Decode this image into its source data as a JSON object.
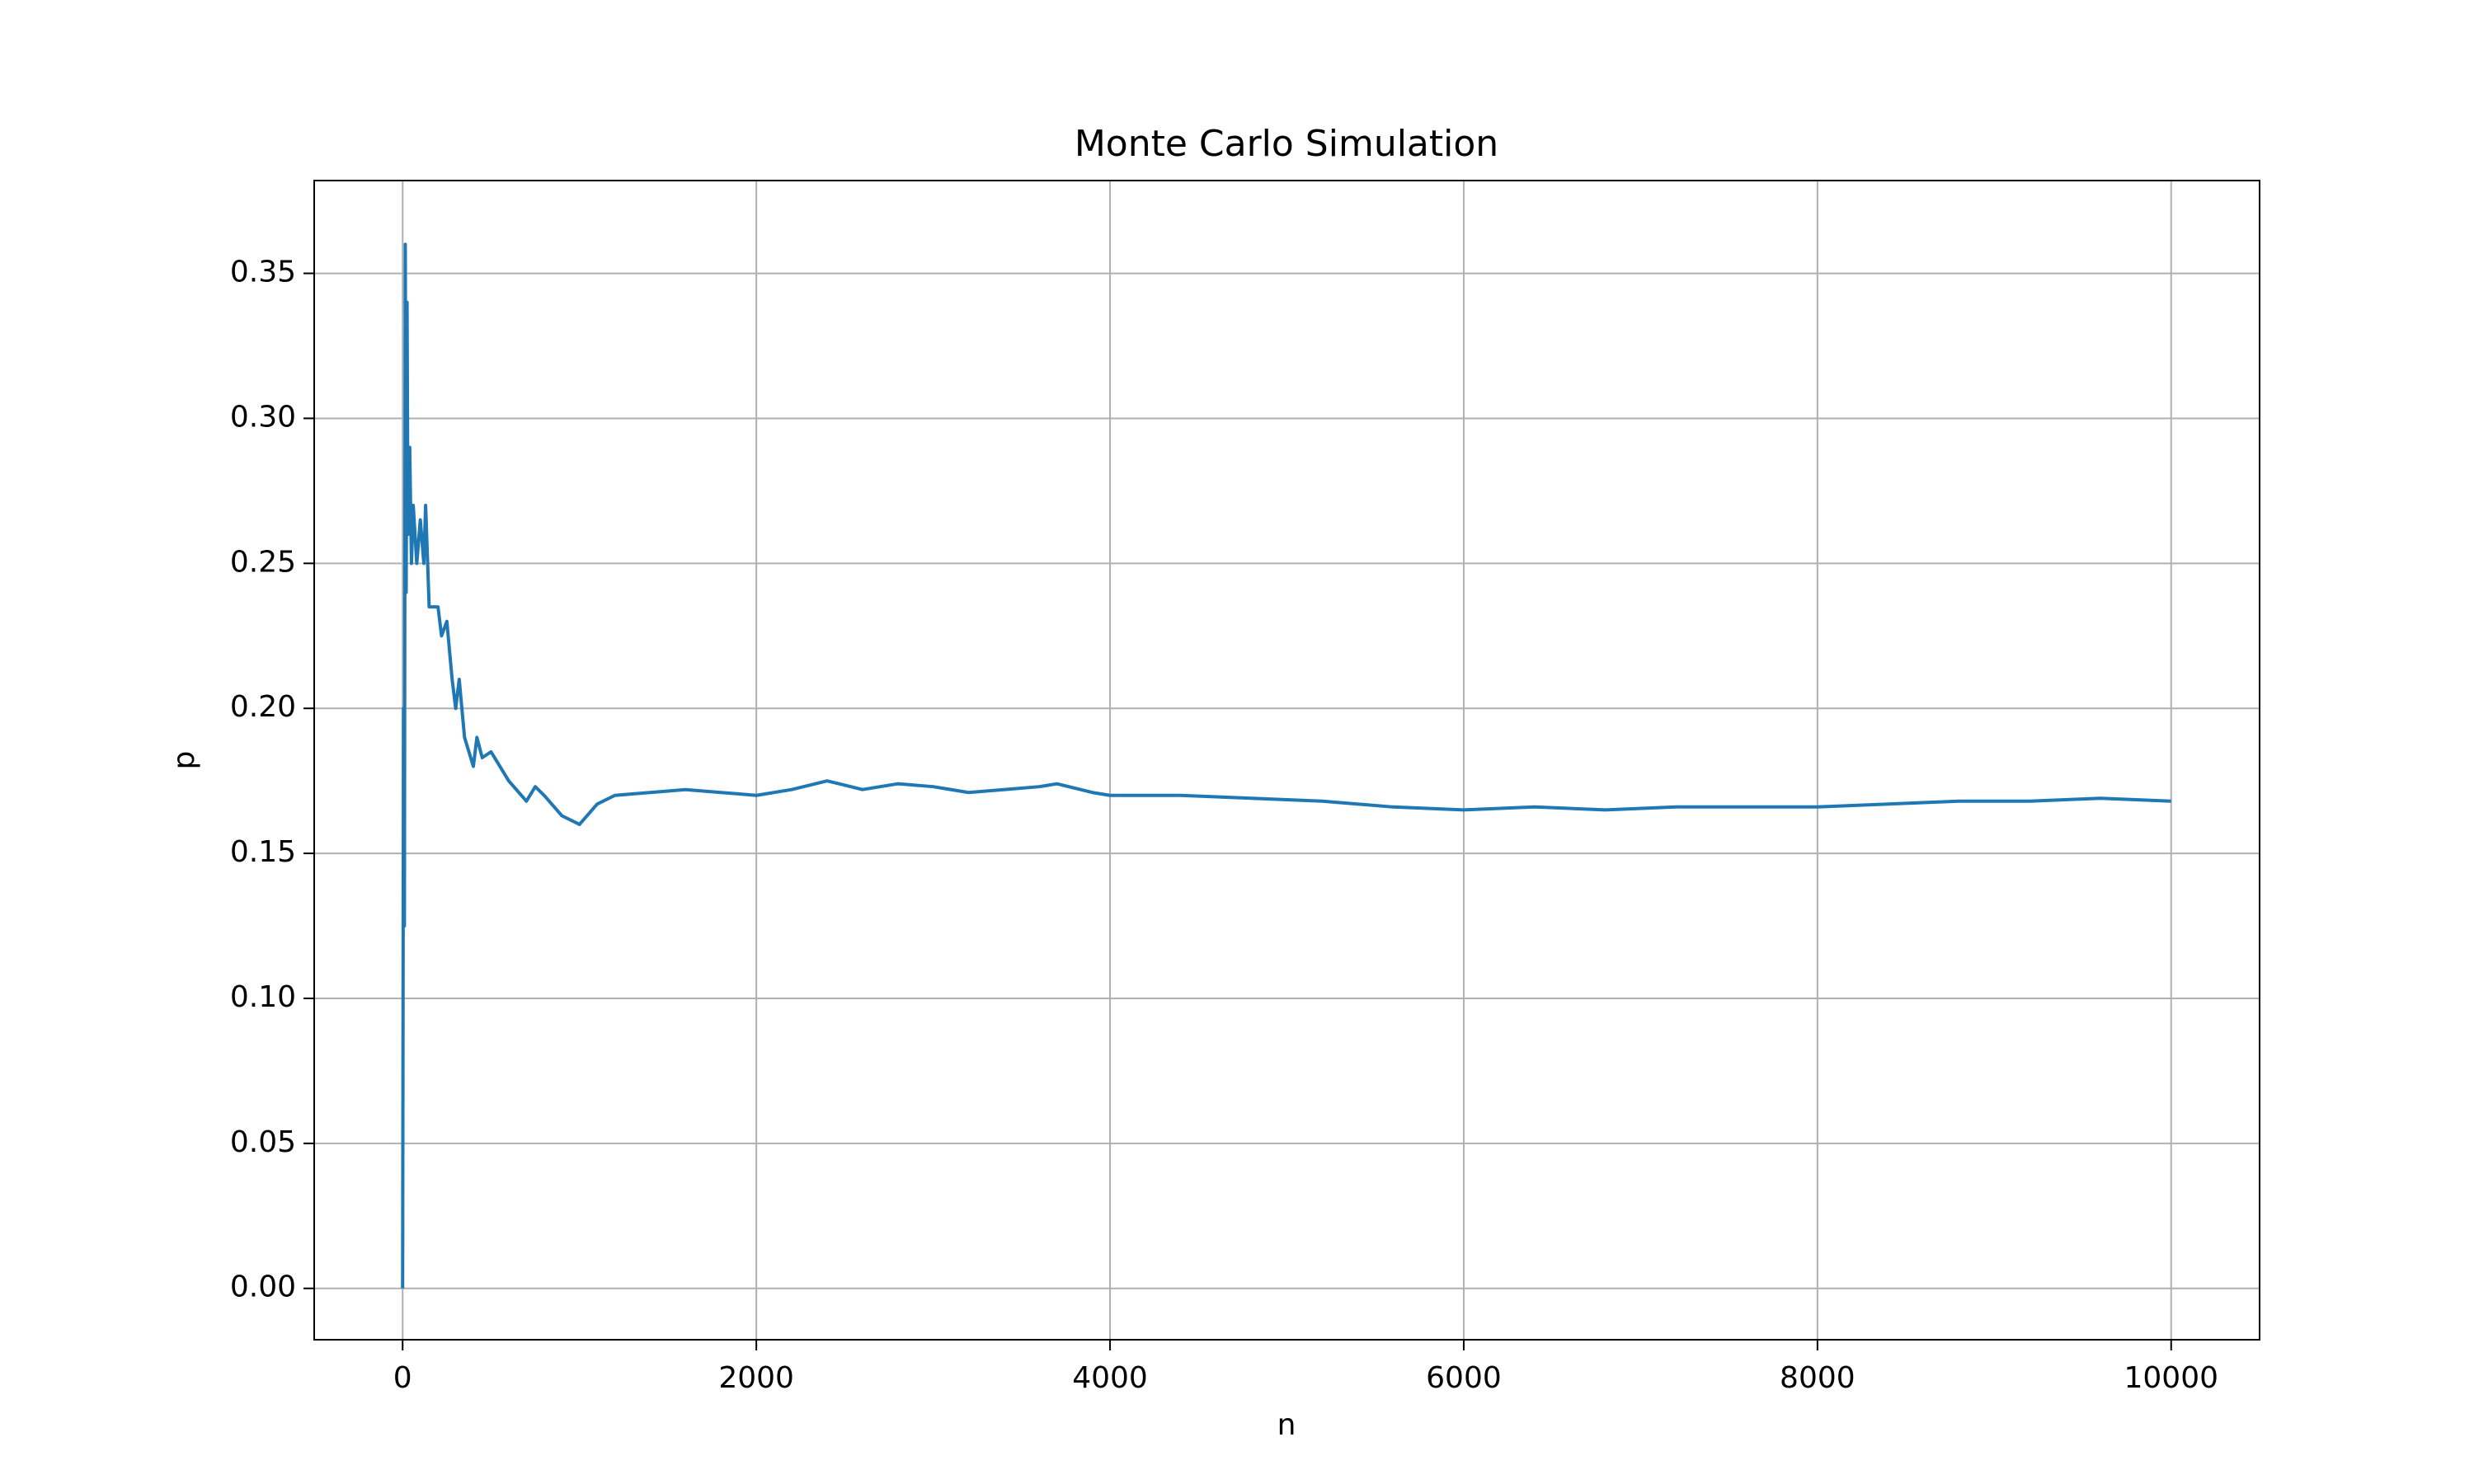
{
  "chart_data": {
    "type": "line",
    "title": "Monte Carlo Simulation",
    "x_label": "n",
    "y_label": "p",
    "x": [
      0,
      5,
      10,
      15,
      20,
      25,
      30,
      40,
      50,
      60,
      80,
      100,
      120,
      130,
      150,
      200,
      220,
      250,
      280,
      300,
      320,
      350,
      400,
      420,
      450,
      500,
      550,
      600,
      700,
      750,
      800,
      900,
      1000,
      1100,
      1200,
      1400,
      1600,
      1800,
      2000,
      2200,
      2400,
      2600,
      2800,
      3000,
      3200,
      3400,
      3600,
      3700,
      3900,
      4000,
      4400,
      4800,
      5200,
      5600,
      6000,
      6400,
      6800,
      7200,
      7600,
      8000,
      8400,
      8800,
      9200,
      9600,
      10000
    ],
    "series": [
      {
        "name": "p",
        "color": "#1f77b4",
        "values": [
          0,
          0.2,
          0.125,
          0.36,
          0.24,
          0.34,
          0.26,
          0.29,
          0.25,
          0.27,
          0.25,
          0.265,
          0.25,
          0.27,
          0.235,
          0.235,
          0.225,
          0.23,
          0.21,
          0.2,
          0.21,
          0.19,
          0.18,
          0.19,
          0.183,
          0.185,
          0.18,
          0.175,
          0.168,
          0.173,
          0.17,
          0.163,
          0.16,
          0.167,
          0.17,
          0.171,
          0.172,
          0.171,
          0.17,
          0.172,
          0.175,
          0.172,
          0.174,
          0.173,
          0.171,
          0.172,
          0.173,
          0.174,
          0.171,
          0.17,
          0.17,
          0.169,
          0.168,
          0.166,
          0.165,
          0.166,
          0.165,
          0.166,
          0.166,
          0.166,
          0.167,
          0.168,
          0.168,
          0.169,
          0.168
        ]
      }
    ],
    "xlim": [
      -500,
      10500
    ],
    "xticks": [
      0,
      2000,
      4000,
      6000,
      8000,
      10000
    ],
    "ylim": [
      -0.0177,
      0.382
    ],
    "yticks": [
      {
        "value": 0,
        "label": "0.00"
      },
      {
        "value": 0.05,
        "label": "0.05"
      },
      {
        "value": 0.1,
        "label": "0.10"
      },
      {
        "value": 0.15,
        "label": "0.15"
      },
      {
        "value": 0.2,
        "label": "0.20"
      },
      {
        "value": 0.25,
        "label": "0.25"
      },
      {
        "value": 0.3,
        "label": "0.30"
      },
      {
        "value": 0.35,
        "label": "0.35"
      }
    ],
    "grid": true
  }
}
